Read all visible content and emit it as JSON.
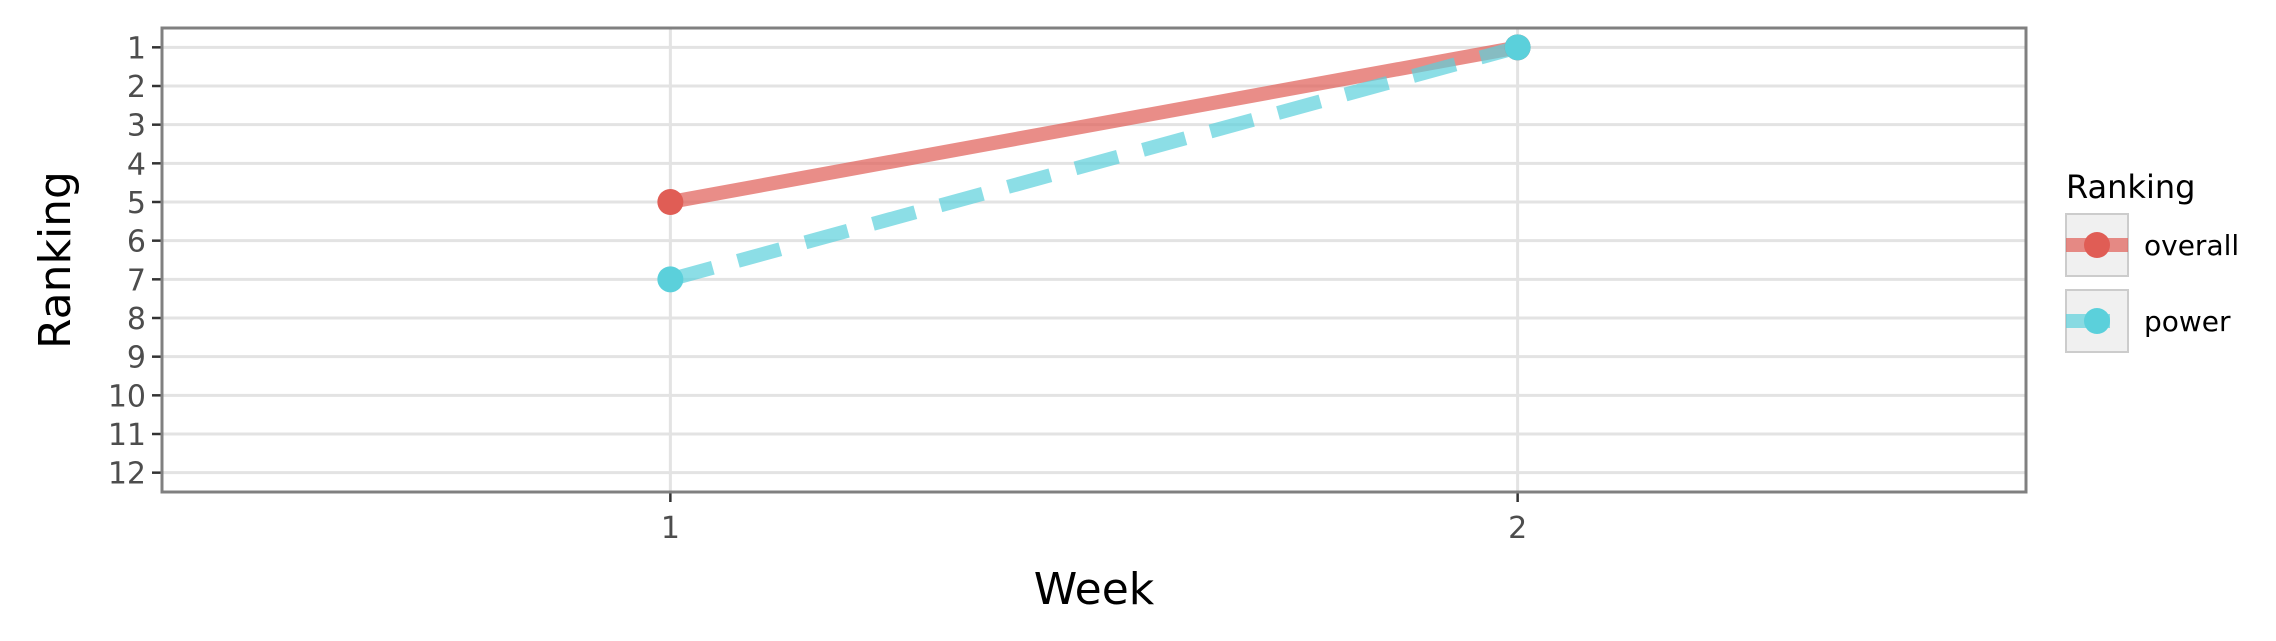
{
  "chart_data": {
    "type": "line",
    "xlabel": "Week",
    "ylabel": "Ranking",
    "x": [
      1,
      2
    ],
    "x_ticks": [
      "1",
      "2"
    ],
    "xlim": [
      0.4,
      2.6
    ],
    "y_ticks": [
      "1",
      "2",
      "3",
      "4",
      "5",
      "6",
      "7",
      "8",
      "9",
      "10",
      "11",
      "12"
    ],
    "ylim": [
      12.5,
      0.5
    ],
    "y_reversed": true,
    "grid": true,
    "legend": {
      "title": "Ranking",
      "position": "right"
    },
    "series": [
      {
        "name": "overall",
        "values": [
          5,
          1
        ],
        "color": "#e05d55",
        "line_style": "solid"
      },
      {
        "name": "power",
        "values": [
          7,
          1
        ],
        "color": "#5bd0db",
        "line_style": "dashed"
      }
    ]
  }
}
